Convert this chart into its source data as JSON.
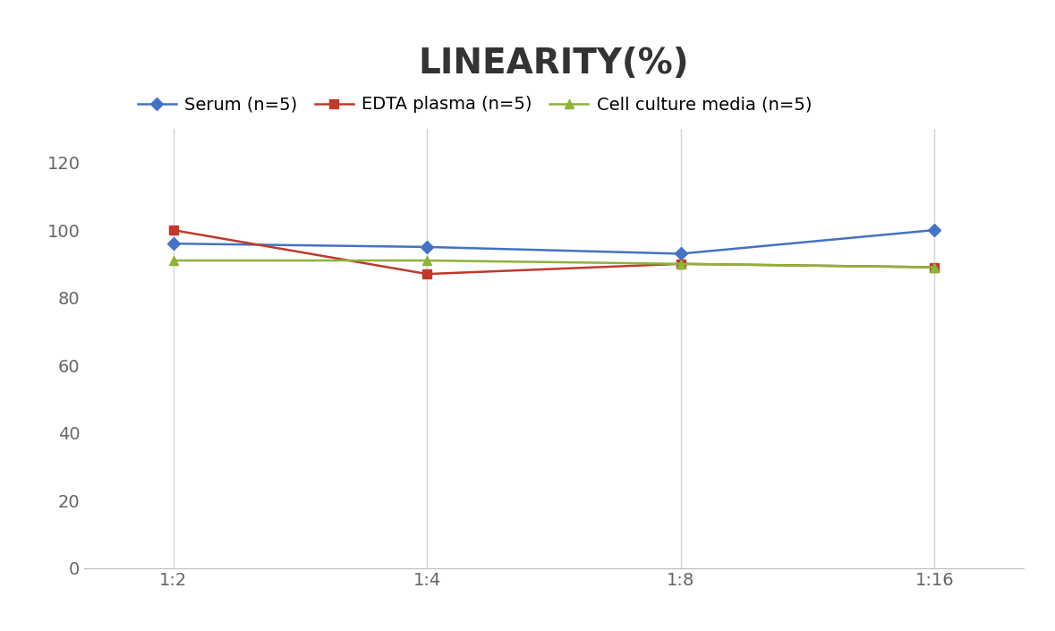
{
  "title": "LINEARITY(%)",
  "x_labels": [
    "1:2",
    "1:4",
    "1:8",
    "1:16"
  ],
  "series": [
    {
      "label": "Serum (n=5)",
      "values": [
        96,
        95,
        93,
        100
      ],
      "color": "#4472C4",
      "marker": "D",
      "markersize": 7
    },
    {
      "label": "EDTA plasma (n=5)",
      "values": [
        100,
        87,
        90,
        89
      ],
      "color": "#C0392B",
      "marker": "s",
      "markersize": 7
    },
    {
      "label": "Cell culture media (n=5)",
      "values": [
        91,
        91,
        90,
        89
      ],
      "color": "#8DB33A",
      "marker": "^",
      "markersize": 7
    }
  ],
  "ylim": [
    0,
    130
  ],
  "yticks": [
    0,
    20,
    40,
    60,
    80,
    100,
    120
  ],
  "grid_color": "#D3D3D3",
  "background_color": "#FFFFFF",
  "title_fontsize": 28,
  "legend_fontsize": 14,
  "tick_fontsize": 14
}
